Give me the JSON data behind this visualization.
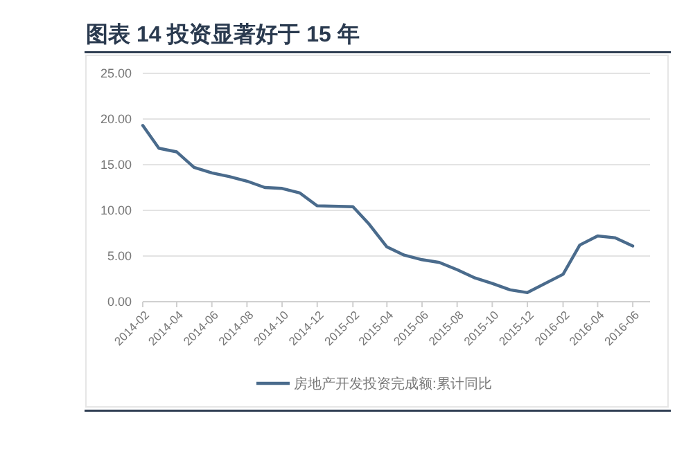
{
  "chart_data": {
    "type": "line",
    "title": "图表 14 投资显著好于 15 年",
    "x": [
      "2014-02",
      "2014-03",
      "2014-04",
      "2014-05",
      "2014-06",
      "2014-07",
      "2014-08",
      "2014-09",
      "2014-10",
      "2014-11",
      "2014-12",
      "2015-02",
      "2015-03",
      "2015-04",
      "2015-05",
      "2015-06",
      "2015-07",
      "2015-08",
      "2015-09",
      "2015-10",
      "2015-11",
      "2015-12",
      "2016-02",
      "2016-03",
      "2016-04",
      "2016-05",
      "2016-06"
    ],
    "series": [
      {
        "name": "房地产开发投资完成额:累计同比",
        "color": "#4a6b8c",
        "values": [
          19.3,
          16.8,
          16.4,
          14.7,
          14.1,
          13.7,
          13.2,
          12.5,
          12.4,
          11.9,
          10.5,
          10.4,
          8.5,
          6.0,
          5.1,
          4.6,
          4.3,
          3.5,
          2.6,
          2.0,
          1.3,
          1.0,
          3.0,
          6.2,
          7.2,
          7.0,
          6.1
        ]
      }
    ],
    "xlim": [
      "2014-02",
      "2016-07"
    ],
    "xticks": [
      "2014-02",
      "2014-04",
      "2014-06",
      "2014-08",
      "2014-10",
      "2014-12",
      "2015-02",
      "2015-04",
      "2015-06",
      "2015-08",
      "2015-10",
      "2015-12",
      "2016-02",
      "2016-04",
      "2016-06"
    ],
    "ylim": [
      0,
      25
    ],
    "yticks": [
      {
        "value": 0,
        "label": "0.00"
      },
      {
        "value": 5,
        "label": "5.00"
      },
      {
        "value": 10,
        "label": "10.00"
      },
      {
        "value": 15,
        "label": "15.00"
      },
      {
        "value": 20,
        "label": "20.00"
      },
      {
        "value": 25,
        "label": "25.00"
      }
    ],
    "grid": "y",
    "legend": "bottom",
    "marker": "none",
    "line_style": "solid"
  }
}
